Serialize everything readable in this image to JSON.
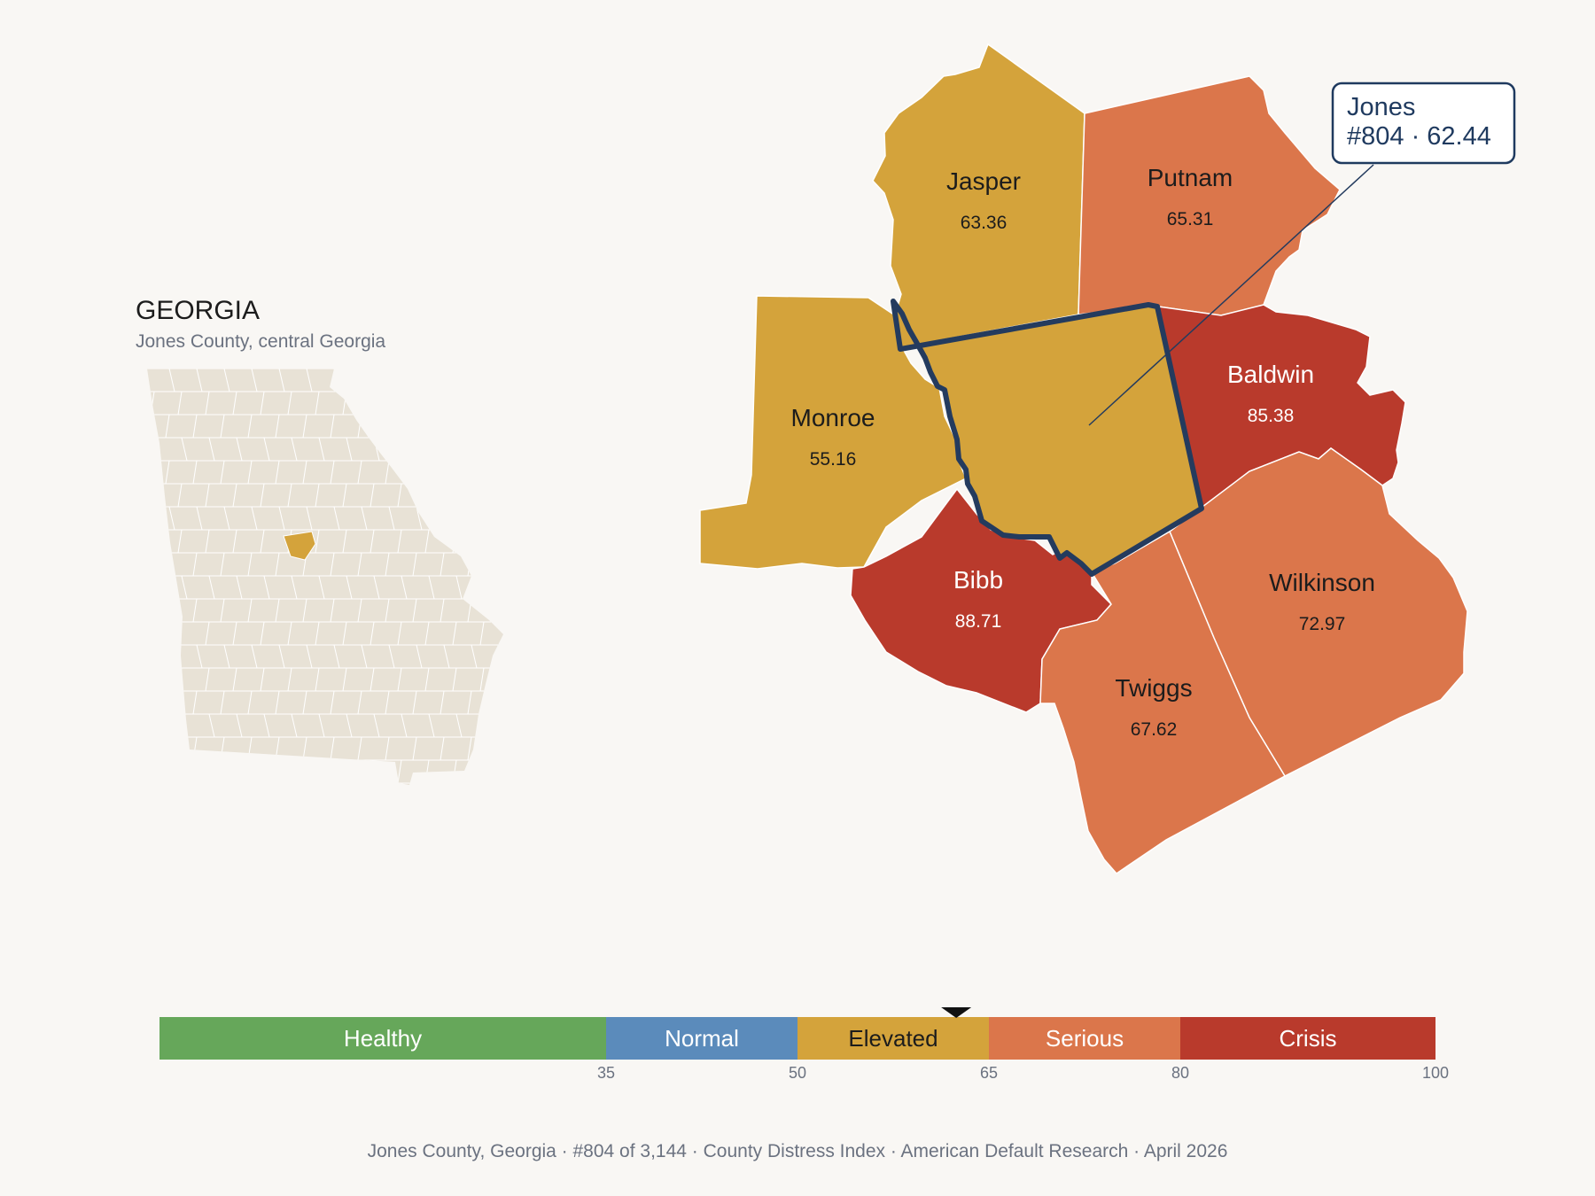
{
  "state_panel": {
    "title": "GEORGIA",
    "subtitle": "Jones County, central Georgia"
  },
  "counties": [
    {
      "id": "jasper",
      "name": "Jasper",
      "value": "63.36",
      "color": "#d4a33b",
      "text_color": "#1c1c1c"
    },
    {
      "id": "putnam",
      "name": "Putnam",
      "value": "65.31",
      "color": "#db764b",
      "text_color": "#1c1c1c"
    },
    {
      "id": "monroe",
      "name": "Monroe",
      "value": "55.16",
      "color": "#d4a33b",
      "text_color": "#1c1c1c"
    },
    {
      "id": "baldwin",
      "name": "Baldwin",
      "value": "85.38",
      "color": "#b93a2c",
      "text_color": "#ffffff"
    },
    {
      "id": "bibb",
      "name": "Bibb",
      "value": "88.71",
      "color": "#b93a2c",
      "text_color": "#ffffff"
    },
    {
      "id": "wilkinson",
      "name": "Wilkinson",
      "value": "72.97",
      "color": "#db764b",
      "text_color": "#1c1c1c"
    },
    {
      "id": "twiggs",
      "name": "Twiggs",
      "value": "67.62",
      "color": "#db764b",
      "text_color": "#1c1c1c"
    },
    {
      "id": "jones",
      "name": "",
      "value": "",
      "color": "#d4a33b",
      "text_color": "#1c1c1c"
    }
  ],
  "callout": {
    "line1": "Jones",
    "line2": "#804 · 62.44",
    "border_color": "#1f3a5f"
  },
  "highlight_color": "#243b5e",
  "scale": {
    "marker_value": 62.44,
    "segments": [
      {
        "label": "Healthy",
        "from": 0,
        "to": 35,
        "color": "#66a75a",
        "text_color": "#ffffff"
      },
      {
        "label": "Normal",
        "from": 35,
        "to": 50,
        "color": "#5b8bbb",
        "text_color": "#ffffff"
      },
      {
        "label": "Elevated",
        "from": 50,
        "to": 65,
        "color": "#d4a33b",
        "text_color": "#1c1c1c"
      },
      {
        "label": "Serious",
        "from": 65,
        "to": 80,
        "color": "#db764b",
        "text_color": "#ffffff"
      },
      {
        "label": "Crisis",
        "from": 80,
        "to": 100,
        "color": "#b93a2c",
        "text_color": "#ffffff"
      }
    ],
    "ticks": [
      "35",
      "50",
      "65",
      "80",
      "100"
    ]
  },
  "footer": {
    "items": [
      "Jones County, Georgia",
      "#804 of 3,144",
      "County Distress Index",
      "American Default Research",
      "April 2026"
    ]
  },
  "colors": {
    "background": "#f9f7f4",
    "state_fill": "#e8e2d6",
    "state_highlight": "#d4a33b"
  }
}
